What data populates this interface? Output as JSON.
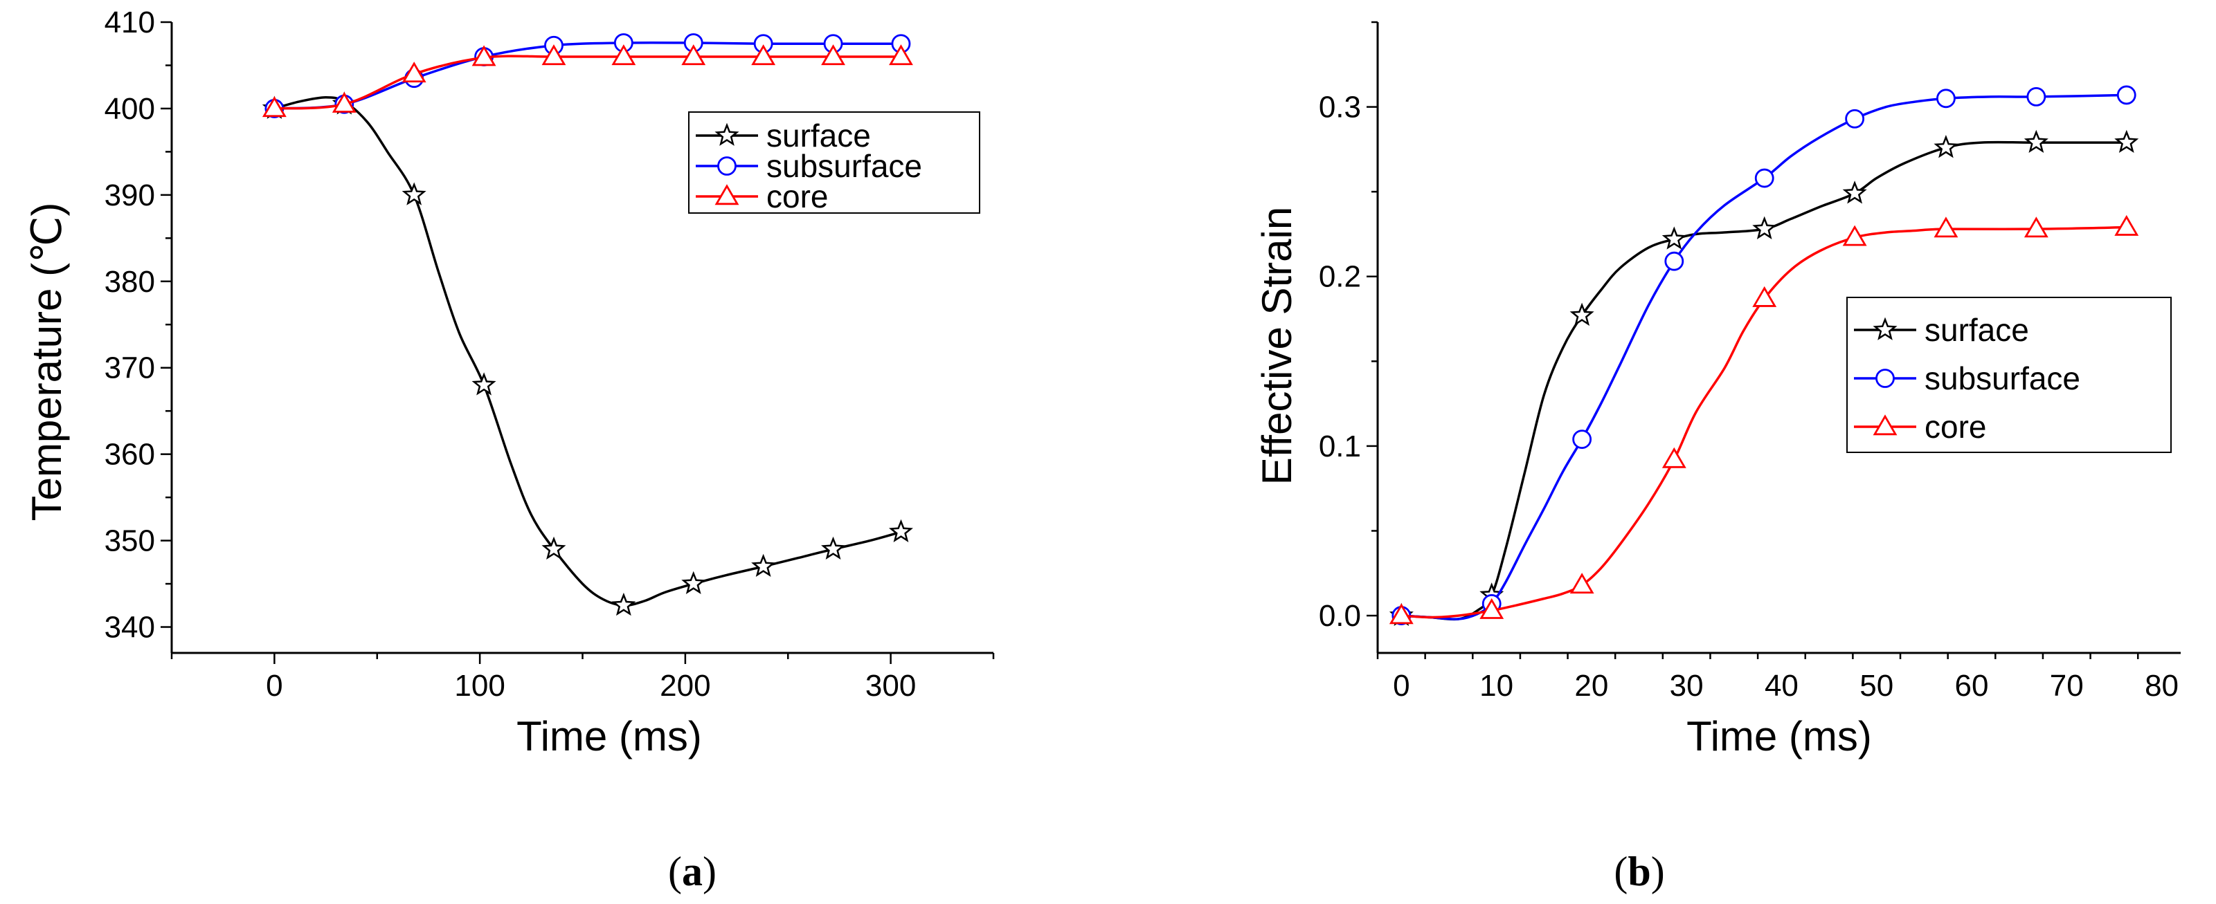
{
  "chart_data": [
    {
      "type": "line",
      "panel_label": "a",
      "title": "",
      "xlabel": "Time (ms)",
      "ylabel": "Temperature (℃)",
      "xlim": [
        -50,
        350
      ],
      "ylim": [
        337,
        410
      ],
      "x_ticks": [
        0,
        100,
        200,
        300
      ],
      "y_ticks": [
        340,
        350,
        360,
        370,
        380,
        390,
        400,
        410
      ],
      "legend_position": "top-right",
      "x": [
        0,
        34,
        68,
        102,
        136,
        170,
        204,
        238,
        272,
        305
      ],
      "series": [
        {
          "name": "surface",
          "color": "#000000",
          "marker": "star",
          "values": [
            400,
            400.5,
            390,
            368,
            349,
            342.5,
            345,
            347,
            349,
            351
          ],
          "curve": [
            [
              0,
              400
            ],
            [
              12,
              400.8
            ],
            [
              25,
              401.3
            ],
            [
              34,
              400.8
            ],
            [
              45,
              398.5
            ],
            [
              55,
              395
            ],
            [
              68,
              390
            ],
            [
              80,
              381
            ],
            [
              90,
              374
            ],
            [
              102,
              368
            ],
            [
              115,
              359
            ],
            [
              125,
              353
            ],
            [
              136,
              349
            ],
            [
              150,
              345
            ],
            [
              160,
              343.2
            ],
            [
              170,
              342.5
            ],
            [
              180,
              343
            ],
            [
              190,
              344
            ],
            [
              204,
              345
            ],
            [
              220,
              346
            ],
            [
              238,
              347
            ],
            [
              255,
              348
            ],
            [
              272,
              349
            ],
            [
              290,
              350
            ],
            [
              305,
              351
            ]
          ]
        },
        {
          "name": "subsurface",
          "color": "#0000ff",
          "marker": "circle",
          "values": [
            400,
            400.5,
            403.5,
            406,
            407.3,
            407.6,
            407.6,
            407.5,
            407.5,
            407.5
          ]
        },
        {
          "name": "core",
          "color": "#ff0000",
          "marker": "triangle",
          "values": [
            400,
            400.5,
            404,
            405.9,
            406,
            406,
            406,
            406,
            406,
            406
          ]
        }
      ]
    },
    {
      "type": "line",
      "panel_label": "b",
      "title": "",
      "xlabel": "Time (ms)",
      "ylabel": "Effective Strain",
      "xlim": [
        -2.5,
        82
      ],
      "ylim": [
        -0.022,
        0.35
      ],
      "x_ticks": [
        0,
        10,
        20,
        30,
        40,
        50,
        60,
        70,
        80
      ],
      "y_ticks": [
        0.0,
        0.1,
        0.2,
        0.3
      ],
      "y_tick_labels": [
        "0.0",
        "0.1",
        "0.2",
        "0.3"
      ],
      "legend_position": "middle-right",
      "x": [
        0,
        9.5,
        19,
        28.7,
        38.2,
        47.7,
        57.3,
        66.8,
        76.3
      ],
      "series": [
        {
          "name": "surface",
          "color": "#000000",
          "marker": "star",
          "values": [
            0,
            0.012,
            0.177,
            0.222,
            0.228,
            0.249,
            0.276,
            0.279,
            0.279
          ],
          "curve": [
            [
              0,
              0
            ],
            [
              3,
              -0.001
            ],
            [
              6,
              -0.002
            ],
            [
              8,
              0.003
            ],
            [
              9.5,
              0.012
            ],
            [
              11,
              0.04
            ],
            [
              13,
              0.085
            ],
            [
              15,
              0.13
            ],
            [
              17,
              0.158
            ],
            [
              19,
              0.177
            ],
            [
              21,
              0.192
            ],
            [
              23,
              0.205
            ],
            [
              26,
              0.217
            ],
            [
              28.7,
              0.222
            ],
            [
              31,
              0.225
            ],
            [
              34,
              0.226
            ],
            [
              38.2,
              0.228
            ],
            [
              41,
              0.234
            ],
            [
              44,
              0.241
            ],
            [
              47.7,
              0.249
            ],
            [
              50,
              0.258
            ],
            [
              53,
              0.267
            ],
            [
              57.3,
              0.276
            ],
            [
              61,
              0.279
            ],
            [
              66.8,
              0.279
            ],
            [
              76.3,
              0.279
            ]
          ]
        },
        {
          "name": "subsurface",
          "color": "#0000ff",
          "marker": "circle",
          "values": [
            0,
            0.007,
            0.104,
            0.209,
            0.258,
            0.293,
            0.305,
            0.306,
            0.307
          ],
          "curve": [
            [
              0,
              0
            ],
            [
              3,
              -0.001
            ],
            [
              6,
              -0.002
            ],
            [
              8,
              0.001
            ],
            [
              9.5,
              0.007
            ],
            [
              11,
              0.02
            ],
            [
              13,
              0.042
            ],
            [
              15,
              0.063
            ],
            [
              17,
              0.085
            ],
            [
              19,
              0.104
            ],
            [
              21,
              0.125
            ],
            [
              23,
              0.148
            ],
            [
              26,
              0.183
            ],
            [
              28.7,
              0.209
            ],
            [
              31,
              0.226
            ],
            [
              34,
              0.242
            ],
            [
              38.2,
              0.258
            ],
            [
              41,
              0.271
            ],
            [
              44,
              0.282
            ],
            [
              47.7,
              0.293
            ],
            [
              51,
              0.3
            ],
            [
              54,
              0.303
            ],
            [
              57.3,
              0.305
            ],
            [
              62,
              0.306
            ],
            [
              66.8,
              0.306
            ],
            [
              76.3,
              0.307
            ]
          ]
        },
        {
          "name": "core",
          "color": "#ff0000",
          "marker": "triangle",
          "values": [
            0,
            0.003,
            0.018,
            0.092,
            0.187,
            0.223,
            0.228,
            0.228,
            0.229
          ],
          "curve": [
            [
              0,
              0
            ],
            [
              3,
              -0.001
            ],
            [
              6,
              0
            ],
            [
              9.5,
              0.003
            ],
            [
              12,
              0.006
            ],
            [
              15,
              0.01
            ],
            [
              17,
              0.013
            ],
            [
              19,
              0.018
            ],
            [
              21,
              0.028
            ],
            [
              23,
              0.042
            ],
            [
              26,
              0.066
            ],
            [
              28.7,
              0.092
            ],
            [
              31,
              0.12
            ],
            [
              34,
              0.146
            ],
            [
              36,
              0.168
            ],
            [
              38.2,
              0.187
            ],
            [
              41,
              0.204
            ],
            [
              44,
              0.215
            ],
            [
              47.7,
              0.223
            ],
            [
              51,
              0.226
            ],
            [
              54,
              0.227
            ],
            [
              57.3,
              0.228
            ],
            [
              66.8,
              0.228
            ],
            [
              76.3,
              0.229
            ]
          ]
        }
      ]
    }
  ]
}
